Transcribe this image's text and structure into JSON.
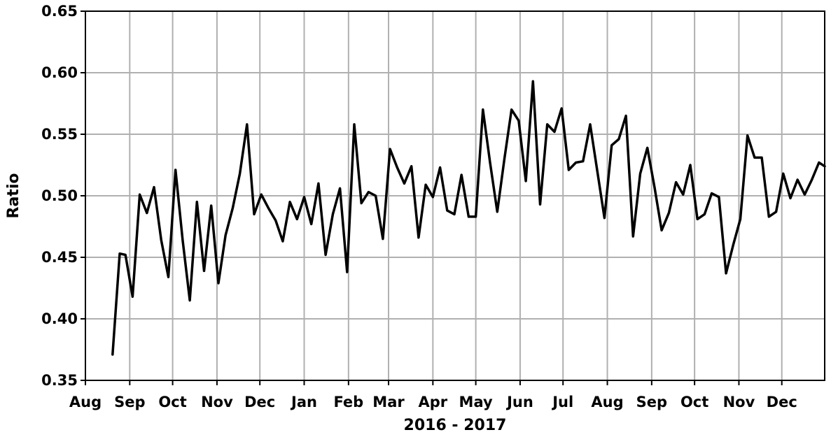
{
  "chart_data": {
    "type": "line",
    "title": "",
    "xlabel": "2016 - 2017",
    "ylabel": "Ratio",
    "ylim": [
      0.35,
      0.65
    ],
    "xlim": [
      "2016-08-01",
      "2017-12-31"
    ],
    "yticks": [
      0.35,
      0.4,
      0.45,
      0.5,
      0.55,
      0.6,
      0.65
    ],
    "ytick_labels": [
      "0.35",
      "0.40",
      "0.45",
      "0.50",
      "0.55",
      "0.60",
      "0.65"
    ],
    "xticks": [
      {
        "date": "2016-08-01",
        "label": "Aug"
      },
      {
        "date": "2016-09-01",
        "label": "Sep"
      },
      {
        "date": "2016-10-01",
        "label": "Oct"
      },
      {
        "date": "2016-11-01",
        "label": "Nov"
      },
      {
        "date": "2016-12-01",
        "label": "Dec"
      },
      {
        "date": "2017-01-01",
        "label": "Jan"
      },
      {
        "date": "2017-02-01",
        "label": "Feb"
      },
      {
        "date": "2017-03-01",
        "label": "Mar"
      },
      {
        "date": "2017-04-01",
        "label": "Apr"
      },
      {
        "date": "2017-05-01",
        "label": "May"
      },
      {
        "date": "2017-06-01",
        "label": "Jun"
      },
      {
        "date": "2017-07-01",
        "label": "Jul"
      },
      {
        "date": "2017-08-01",
        "label": "Aug"
      },
      {
        "date": "2017-09-01",
        "label": "Sep"
      },
      {
        "date": "2017-10-01",
        "label": "Oct"
      },
      {
        "date": "2017-11-01",
        "label": "Nov"
      },
      {
        "date": "2017-12-01",
        "label": "Dec"
      }
    ],
    "grid": true,
    "color": "#000000",
    "series": [
      {
        "x": [
          "2016-08-20",
          "2016-08-25",
          "2016-08-29",
          "2016-09-03",
          "2016-09-08",
          "2016-09-13",
          "2016-09-18",
          "2016-09-23",
          "2016-09-28",
          "2016-10-03",
          "2016-10-08",
          "2016-10-13",
          "2016-10-18",
          "2016-10-23",
          "2016-10-28",
          "2016-11-02",
          "2016-11-07",
          "2016-11-12",
          "2016-11-17",
          "2016-11-22",
          "2016-11-27",
          "2016-12-02",
          "2016-12-07",
          "2016-12-12",
          "2016-12-17",
          "2016-12-22",
          "2016-12-27",
          "2017-01-01",
          "2017-01-06",
          "2017-01-11",
          "2017-01-16",
          "2017-01-21",
          "2017-01-26",
          "2017-01-31",
          "2017-02-05",
          "2017-02-10",
          "2017-02-15",
          "2017-02-20",
          "2017-02-25",
          "2017-03-02",
          "2017-03-07",
          "2017-03-12",
          "2017-03-17",
          "2017-03-22",
          "2017-03-27",
          "2017-04-01",
          "2017-04-06",
          "2017-04-11",
          "2017-04-16",
          "2017-04-21",
          "2017-04-26",
          "2017-05-01",
          "2017-05-06",
          "2017-05-11",
          "2017-05-16",
          "2017-05-21",
          "2017-05-26",
          "2017-05-31",
          "2017-06-05",
          "2017-06-10",
          "2017-06-15",
          "2017-06-20",
          "2017-06-25",
          "2017-06-30",
          "2017-07-05",
          "2017-07-10",
          "2017-07-15",
          "2017-07-20",
          "2017-07-25",
          "2017-07-30",
          "2017-08-04",
          "2017-08-09",
          "2017-08-14",
          "2017-08-19",
          "2017-08-24",
          "2017-08-29",
          "2017-09-03",
          "2017-09-08",
          "2017-09-13",
          "2017-09-18",
          "2017-09-23",
          "2017-09-28",
          "2017-10-03",
          "2017-10-08",
          "2017-10-13",
          "2017-10-18",
          "2017-10-23",
          "2017-10-28",
          "2017-11-02",
          "2017-11-07",
          "2017-11-12",
          "2017-11-17",
          "2017-11-22",
          "2017-11-27",
          "2017-12-02",
          "2017-12-07",
          "2017-12-12",
          "2017-12-17",
          "2017-12-22",
          "2017-12-27",
          "2017-12-31"
        ],
        "y": [
          0.371,
          0.453,
          0.452,
          0.418,
          0.501,
          0.486,
          0.507,
          0.464,
          0.434,
          0.521,
          0.464,
          0.415,
          0.495,
          0.439,
          0.492,
          0.429,
          0.468,
          0.49,
          0.518,
          0.558,
          0.485,
          0.501,
          0.49,
          0.48,
          0.463,
          0.495,
          0.481,
          0.499,
          0.477,
          0.51,
          0.452,
          0.485,
          0.506,
          0.438,
          0.558,
          0.494,
          0.503,
          0.5,
          0.465,
          0.538,
          0.523,
          0.51,
          0.524,
          0.466,
          0.509,
          0.499,
          0.523,
          0.488,
          0.485,
          0.517,
          0.483,
          0.483,
          0.57,
          0.527,
          0.487,
          0.53,
          0.57,
          0.561,
          0.512,
          0.593,
          0.493,
          0.558,
          0.552,
          0.571,
          0.521,
          0.527,
          0.528,
          0.558,
          0.52,
          0.482,
          0.541,
          0.546,
          0.565,
          0.467,
          0.518,
          0.539,
          0.507,
          0.472,
          0.486,
          0.511,
          0.501,
          0.525,
          0.481,
          0.485,
          0.502,
          0.499,
          0.437,
          0.46,
          0.481,
          0.549,
          0.531,
          0.531,
          0.483,
          0.487,
          0.518,
          0.498,
          0.513,
          0.501,
          0.513,
          0.527,
          0.524
        ]
      }
    ]
  }
}
